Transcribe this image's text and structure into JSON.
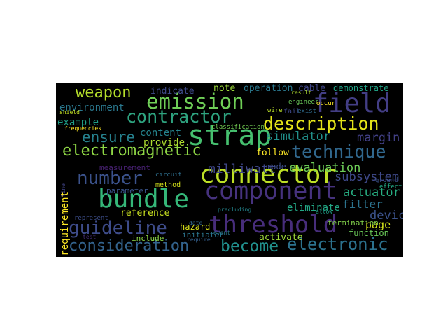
{
  "wordcloud": {
    "background": "#000000",
    "words": [
      {
        "text": "emission",
        "color": "#6fcf57"
      },
      {
        "text": "field",
        "color": "#433e85"
      },
      {
        "text": "weapon",
        "color": "#b5de2b"
      },
      {
        "text": "contractor",
        "color": "#2ea37f"
      },
      {
        "text": "description",
        "color": "#e4e419"
      },
      {
        "text": "strap",
        "color": "#46c06f"
      },
      {
        "text": "ensure",
        "color": "#26818e"
      },
      {
        "text": "technique",
        "color": "#31688e"
      },
      {
        "text": "electromagnetic",
        "color": "#8ed645"
      },
      {
        "text": "connector",
        "color": "#bddf26"
      },
      {
        "text": "number",
        "color": "#3b528b"
      },
      {
        "text": "component",
        "color": "#46327e"
      },
      {
        "text": "bundle",
        "color": "#35b779"
      },
      {
        "text": "threshold",
        "color": "#472d7b"
      },
      {
        "text": "guideline",
        "color": "#3e4c8a"
      },
      {
        "text": "consideration",
        "color": "#33638d"
      },
      {
        "text": "become",
        "color": "#21908d"
      },
      {
        "text": "electronic",
        "color": "#2c728e"
      },
      {
        "text": "environment",
        "color": "#2a788e"
      },
      {
        "text": "example",
        "color": "#1f9f88"
      },
      {
        "text": "milliwatt",
        "color": "#3f4788"
      },
      {
        "text": "evaluation",
        "color": "#6ece58"
      },
      {
        "text": "subsystem",
        "color": "#3e4989"
      },
      {
        "text": "simulator",
        "color": "#21918c"
      },
      {
        "text": "margin",
        "color": "#424086"
      },
      {
        "text": "actuator",
        "color": "#27ad81"
      },
      {
        "text": "filter",
        "color": "#2c738e"
      },
      {
        "text": "device",
        "color": "#3b528b"
      },
      {
        "text": "page",
        "color": "#d2e21b"
      },
      {
        "text": "content",
        "color": "#25848e"
      },
      {
        "text": "provide",
        "color": "#addc30"
      },
      {
        "text": "note",
        "color": "#9dd93b"
      },
      {
        "text": "operation",
        "color": "#2a788e"
      },
      {
        "text": "cable",
        "color": "#404688"
      },
      {
        "text": "demonstrate",
        "color": "#20a386"
      },
      {
        "text": "indicate",
        "color": "#3e4a89"
      },
      {
        "text": "follow",
        "color": "#fde725"
      },
      {
        "text": "mode",
        "color": "#3d4e8a"
      },
      {
        "text": "requirement",
        "color": "#fde725"
      },
      {
        "text": "reference",
        "color": "#c8e020"
      },
      {
        "text": "eliminate",
        "color": "#22a785"
      },
      {
        "text": "hazard",
        "color": "#d8e219"
      },
      {
        "text": "activate",
        "color": "#a0da39"
      },
      {
        "text": "function",
        "color": "#6ccd5a"
      },
      {
        "text": "termination",
        "color": "#83d34b"
      },
      {
        "text": "include",
        "color": "#8bd646"
      },
      {
        "text": "parameter",
        "color": "#3a548c"
      },
      {
        "text": "method",
        "color": "#d5e21a"
      },
      {
        "text": "initiator",
        "color": "#2b758e"
      },
      {
        "text": "measurement",
        "color": "#482173"
      },
      {
        "text": "classification",
        "color": "#75d054"
      },
      {
        "text": "wire",
        "color": "#b8de29"
      },
      {
        "text": "fail",
        "color": "#3f4889"
      },
      {
        "text": "exist",
        "color": "#2f6c8e"
      },
      {
        "text": "engineer",
        "color": "#6ccd5a"
      },
      {
        "text": "occur",
        "color": "#fde725"
      },
      {
        "text": "ground",
        "color": "#3b528b"
      },
      {
        "text": "effect",
        "color": "#22a884"
      },
      {
        "text": "result",
        "color": "#addc30"
      },
      {
        "text": "shield",
        "color": "#c2df23"
      },
      {
        "text": "frequencies",
        "color": "#fde725"
      },
      {
        "text": "circuit",
        "color": "#2e6f8e"
      },
      {
        "text": "represent",
        "color": "#3d4e8a"
      },
      {
        "text": "test",
        "color": "#472c7a"
      },
      {
        "text": "require",
        "color": "#35608d"
      },
      {
        "text": "event",
        "color": "#29798e"
      },
      {
        "text": "date",
        "color": "#31688e"
      },
      {
        "text": "allow",
        "color": "#1fa088"
      },
      {
        "text": "line",
        "color": "#414487"
      },
      {
        "text": "precluding",
        "color": "#24868e"
      }
    ]
  }
}
